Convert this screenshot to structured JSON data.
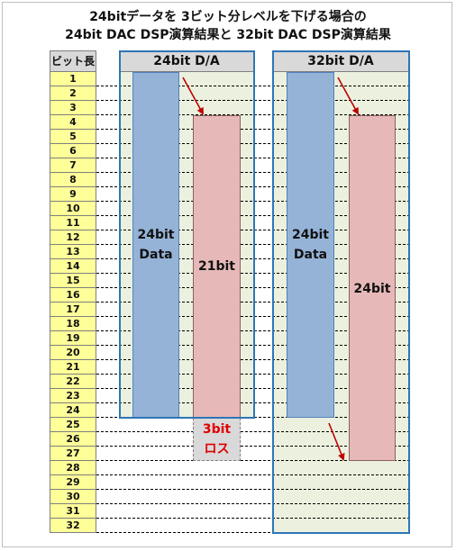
{
  "title": {
    "line1": "24bitデータを 3ビット分レベルを下げる場合の",
    "line2": "24bit DAC DSP演算結果と 32bit DAC DSP演算結果"
  },
  "bit_column_header": "ビット長",
  "bit_rows": [
    "1",
    "2",
    "3",
    "4",
    "5",
    "6",
    "7",
    "8",
    "9",
    "10",
    "11",
    "12",
    "13",
    "14",
    "15",
    "16",
    "17",
    "18",
    "19",
    "20",
    "21",
    "22",
    "23",
    "24",
    "25",
    "26",
    "27",
    "28",
    "29",
    "30",
    "31",
    "32"
  ],
  "panel_24": {
    "header": "24bit D/A",
    "input_label_1": "24bit",
    "input_label_2": "Data",
    "output_label": "21bit",
    "loss_label_1": "3bit",
    "loss_label_2": "ロス",
    "input_bits": [
      1,
      24
    ],
    "output_bits": [
      4,
      24
    ],
    "loss_bits": [
      25,
      27
    ]
  },
  "panel_32": {
    "header": "32bit D/A",
    "input_label_1": "24bit",
    "input_label_2": "Data",
    "output_label": "24bit",
    "input_bits": [
      1,
      24
    ],
    "output_bits": [
      4,
      27
    ]
  },
  "colors": {
    "input_bar": "#95b3d7",
    "output_bar": "#e6b9b8",
    "loss_bar": "#d9d9d9",
    "loss_text": "#e00000",
    "bit_cell": "#ffff99",
    "panel_bg": "#ebf1de",
    "panel_outline": "#2e75b6",
    "arrow": "#c00000"
  }
}
